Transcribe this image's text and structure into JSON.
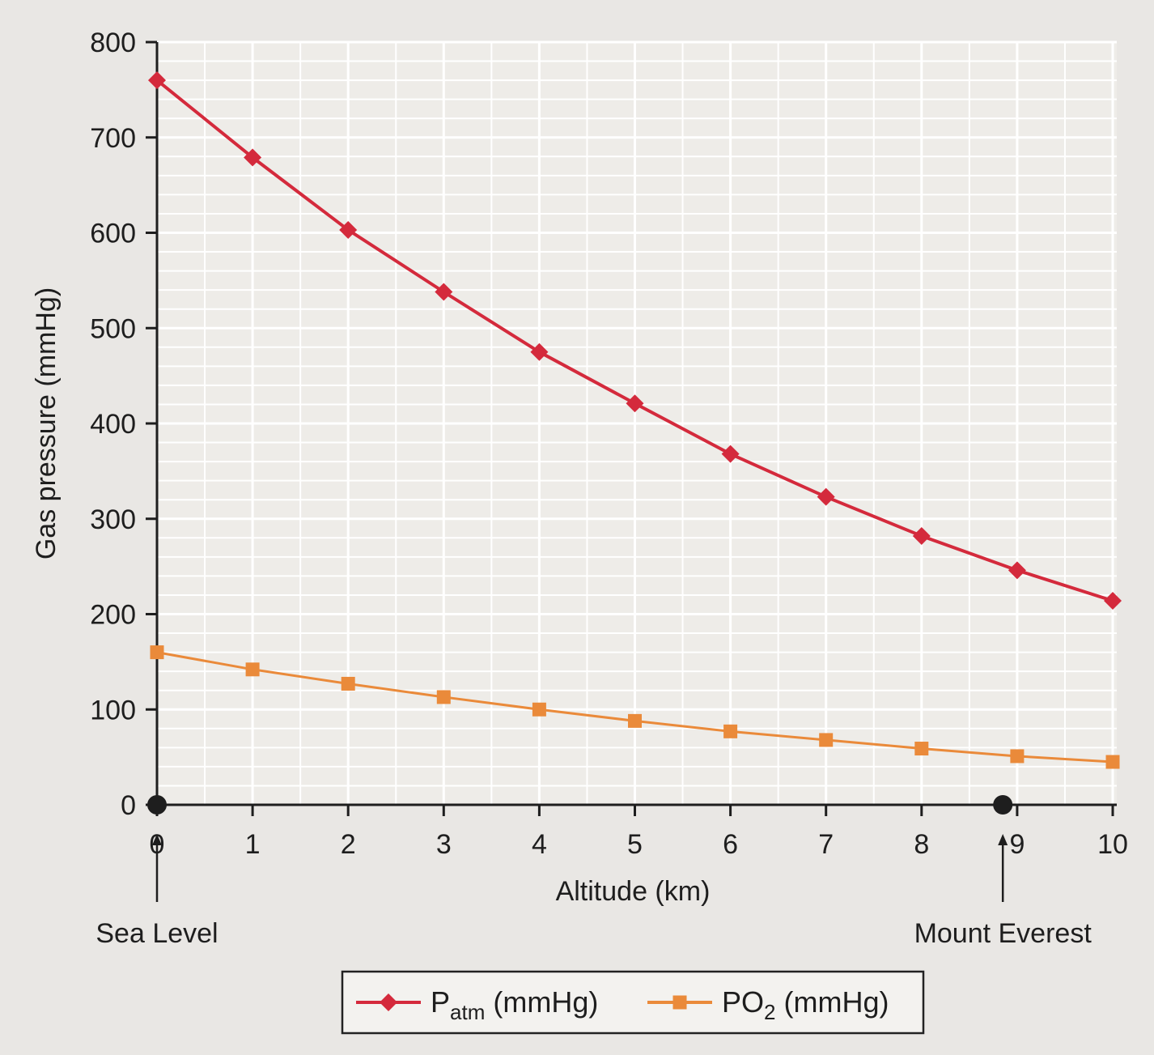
{
  "chart_data": {
    "type": "line",
    "title": "",
    "xlabel": "Altitude (km)",
    "ylabel": "Gas pressure (mmHg)",
    "xlim": [
      0,
      10
    ],
    "ylim": [
      0,
      800
    ],
    "x_ticks": [
      "0",
      "1",
      "2",
      "3",
      "4",
      "5",
      "6",
      "7",
      "8",
      "9",
      "10"
    ],
    "y_ticks": [
      "0",
      "100",
      "200",
      "300",
      "400",
      "500",
      "600",
      "700",
      "800"
    ],
    "grid": true,
    "legend_position": "bottom-center",
    "x": [
      0,
      1,
      2,
      3,
      4,
      5,
      6,
      7,
      8,
      9,
      10
    ],
    "series": [
      {
        "name": "Patm (mmHg)",
        "legend_main": "P",
        "legend_sub": "atm",
        "legend_rest": " (mmHg)",
        "marker": "diamond",
        "color": "#d42a3c",
        "values": [
          760,
          679,
          603,
          538,
          475,
          421,
          368,
          323,
          282,
          246,
          214
        ]
      },
      {
        "name": "PO2 (mmHg)",
        "legend_main": "PO",
        "legend_sub": "2",
        "legend_rest": " (mmHg)",
        "marker": "square",
        "color": "#ea8a3a",
        "values": [
          160,
          142,
          127,
          113,
          100,
          88,
          77,
          68,
          59,
          51,
          45
        ]
      }
    ],
    "annotations": [
      {
        "text": "Sea Level",
        "x": 0,
        "marker": "dot"
      },
      {
        "text": "Mount Everest",
        "x": 8.85,
        "marker": "dot"
      }
    ]
  }
}
